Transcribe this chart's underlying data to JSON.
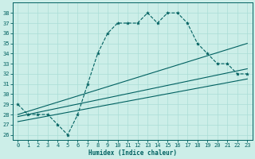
{
  "xlabel": "Humidex (Indice chaleur)",
  "bg_color": "#cceee8",
  "line_color": "#006060",
  "grid_color": "#aaddd6",
  "xlim": [
    -0.5,
    23.5
  ],
  "ylim": [
    25.5,
    39.0
  ],
  "xticks": [
    0,
    1,
    2,
    3,
    4,
    5,
    6,
    7,
    8,
    9,
    10,
    11,
    12,
    13,
    14,
    15,
    16,
    17,
    18,
    19,
    20,
    21,
    22,
    23
  ],
  "yticks": [
    26,
    27,
    28,
    29,
    30,
    31,
    32,
    33,
    34,
    35,
    36,
    37,
    38
  ],
  "line1_x": [
    0,
    1,
    2,
    3,
    4,
    5,
    6,
    7,
    8,
    9,
    10,
    11,
    12,
    13,
    14,
    15,
    16,
    17,
    18,
    19,
    20,
    21,
    22,
    23
  ],
  "line1_y": [
    29,
    28,
    28,
    28,
    27,
    26,
    28,
    31,
    34,
    36,
    37,
    37,
    37,
    38,
    37,
    38,
    38,
    37,
    35,
    34,
    33,
    33,
    32,
    32
  ],
  "line2_x": [
    0,
    23
  ],
  "line2_y": [
    28.0,
    35.0
  ],
  "line3_x": [
    0,
    23
  ],
  "line3_y": [
    27.8,
    32.5
  ],
  "line4_x": [
    0,
    23
  ],
  "line4_y": [
    27.3,
    31.5
  ]
}
